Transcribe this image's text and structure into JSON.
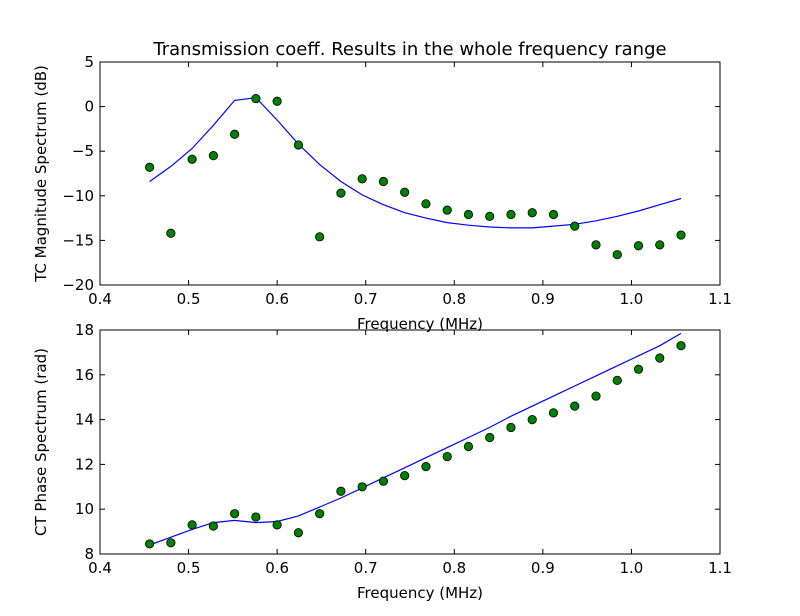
{
  "title": "Transmission coeff. Results in the whole frequency range",
  "colors": {
    "line": "#0000ff",
    "marker_fill": "#008000",
    "marker_edge": "#000000",
    "axes": "#000000"
  },
  "chart_data": [
    {
      "type": "line",
      "title": "Transmission coeff. Results in the whole frequency range",
      "xlabel": "Frequency (MHz)",
      "ylabel": "TC Magnitude Spectrum (dB)",
      "xlim": [
        0.4,
        1.1
      ],
      "ylim": [
        -20,
        5
      ],
      "xticks": [
        0.4,
        0.5,
        0.6,
        0.7,
        0.8,
        0.9,
        1.0,
        1.1
      ],
      "xtick_labels": [
        "0.4",
        "0.5",
        "0.6",
        "0.7",
        "0.8",
        "0.9",
        "1.0",
        "1.1"
      ],
      "yticks": [
        -20,
        -15,
        -10,
        -5,
        0,
        5
      ],
      "ytick_labels": [
        "−20",
        "−15",
        "−10",
        "−5",
        "0",
        "5"
      ],
      "grid": false,
      "series": [
        {
          "style": "line",
          "x": [
            0.456,
            0.48,
            0.504,
            0.528,
            0.552,
            0.576,
            0.6,
            0.624,
            0.648,
            0.672,
            0.696,
            0.72,
            0.744,
            0.768,
            0.792,
            0.816,
            0.84,
            0.864,
            0.888,
            0.912,
            0.936,
            0.96,
            0.984,
            1.008,
            1.032,
            1.056
          ],
          "y": [
            -8.4,
            -6.7,
            -4.7,
            -2.1,
            0.7,
            1.0,
            -1.5,
            -4.2,
            -6.5,
            -8.4,
            -9.9,
            -11.0,
            -11.9,
            -12.5,
            -13.0,
            -13.3,
            -13.5,
            -13.6,
            -13.6,
            -13.4,
            -13.2,
            -12.8,
            -12.3,
            -11.7,
            -11.0,
            -10.3
          ]
        },
        {
          "style": "markers",
          "x": [
            0.456,
            0.48,
            0.504,
            0.528,
            0.552,
            0.576,
            0.6,
            0.624,
            0.648,
            0.672,
            0.696,
            0.72,
            0.744,
            0.768,
            0.792,
            0.816,
            0.84,
            0.864,
            0.888,
            0.912,
            0.936,
            0.96,
            0.984,
            1.008,
            1.032,
            1.056
          ],
          "y": [
            -6.8,
            -14.2,
            -5.9,
            -5.5,
            -3.1,
            0.9,
            0.6,
            -4.3,
            -14.6,
            -9.7,
            -8.1,
            -8.4,
            -9.6,
            -10.9,
            -11.6,
            -12.1,
            -12.3,
            -12.1,
            -11.9,
            -12.1,
            -13.4,
            -15.5,
            -16.6,
            -15.6,
            -15.5,
            -14.4
          ]
        }
      ]
    },
    {
      "type": "line",
      "xlabel": "Frequency (MHz)",
      "ylabel": "CT Phase Spectrum (rad)",
      "xlim": [
        0.4,
        1.1
      ],
      "ylim": [
        8,
        18
      ],
      "xticks": [
        0.4,
        0.5,
        0.6,
        0.7,
        0.8,
        0.9,
        1.0,
        1.1
      ],
      "xtick_labels": [
        "0.4",
        "0.5",
        "0.6",
        "0.7",
        "0.8",
        "0.9",
        "1.0",
        "1.1"
      ],
      "yticks": [
        8,
        10,
        12,
        14,
        16,
        18
      ],
      "ytick_labels": [
        "8",
        "10",
        "12",
        "14",
        "16",
        "18"
      ],
      "grid": false,
      "series": [
        {
          "style": "line",
          "x": [
            0.456,
            0.48,
            0.504,
            0.528,
            0.552,
            0.576,
            0.6,
            0.624,
            0.648,
            0.672,
            0.696,
            0.72,
            0.744,
            0.768,
            0.792,
            0.816,
            0.84,
            0.864,
            0.888,
            0.912,
            0.936,
            0.96,
            0.984,
            1.008,
            1.032,
            1.056
          ],
          "y": [
            8.4,
            8.75,
            9.1,
            9.4,
            9.5,
            9.4,
            9.45,
            9.7,
            10.1,
            10.5,
            10.95,
            11.4,
            11.85,
            12.3,
            12.75,
            13.2,
            13.65,
            14.15,
            14.6,
            15.05,
            15.5,
            15.95,
            16.4,
            16.85,
            17.3,
            17.85
          ]
        },
        {
          "style": "markers",
          "x": [
            0.456,
            0.48,
            0.504,
            0.528,
            0.552,
            0.576,
            0.6,
            0.624,
            0.648,
            0.672,
            0.696,
            0.72,
            0.744,
            0.768,
            0.792,
            0.816,
            0.84,
            0.864,
            0.888,
            0.912,
            0.936,
            0.96,
            0.984,
            1.008,
            1.032,
            1.056
          ],
          "y": [
            8.45,
            8.5,
            9.3,
            9.25,
            9.8,
            9.65,
            9.3,
            8.95,
            9.8,
            10.8,
            11.0,
            11.25,
            11.5,
            11.9,
            12.35,
            12.8,
            13.2,
            13.65,
            14.0,
            14.3,
            14.6,
            15.05,
            15.75,
            16.25,
            16.75,
            17.3
          ]
        }
      ]
    }
  ]
}
